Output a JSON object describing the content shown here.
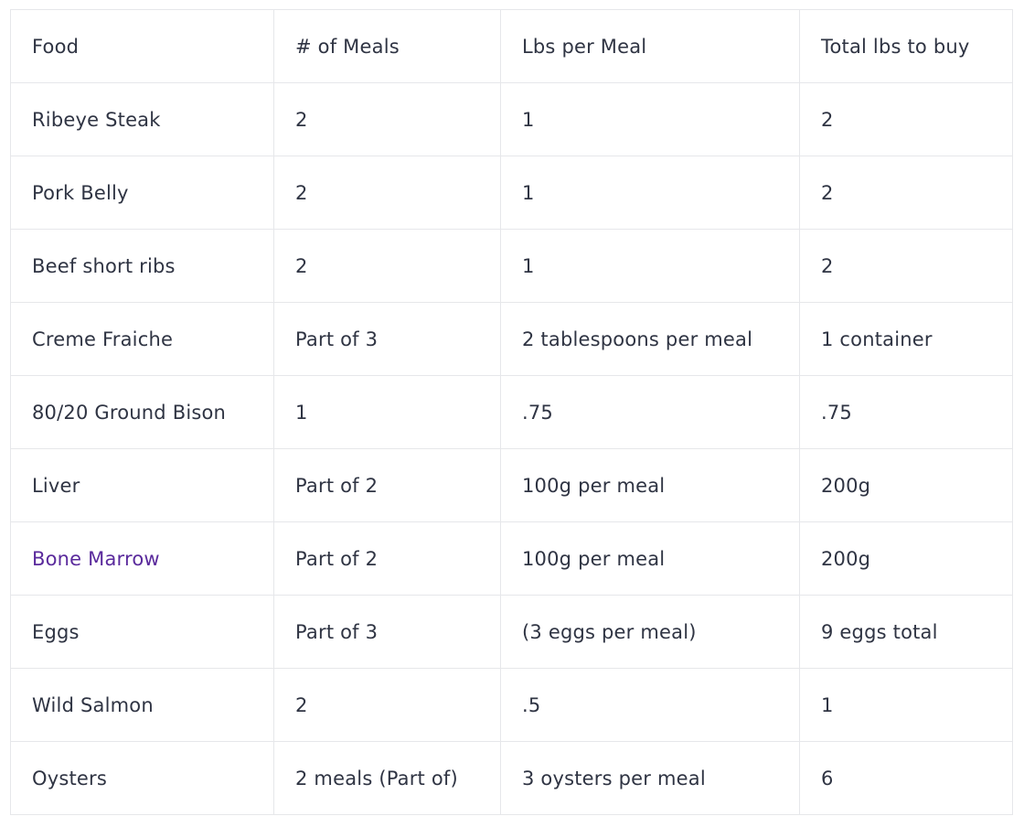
{
  "table": {
    "headers": [
      "Food",
      "# of Meals",
      "Lbs per Meal",
      "Total lbs to buy"
    ],
    "rows": [
      [
        "Ribeye Steak",
        "2",
        "1",
        "2"
      ],
      [
        "Pork Belly",
        "2",
        "1",
        "2"
      ],
      [
        "Beef short ribs",
        "2",
        "1",
        "2"
      ],
      [
        "Creme Fraiche",
        "Part of 3",
        "2 tablespoons per meal",
        "1 container"
      ],
      [
        "80/20 Ground Bison",
        "1",
        ".75",
        ".75"
      ],
      [
        "Liver",
        "Part of 2",
        "100g per meal",
        "200g"
      ],
      [
        "Bone Marrow",
        "Part of 2",
        "100g per meal",
        "200g"
      ],
      [
        "Eggs",
        "Part of 3",
        "(3 eggs per meal)",
        "9 eggs total"
      ],
      [
        "Wild Salmon",
        "2",
        ".5",
        "1"
      ],
      [
        "Oysters",
        "2 meals (Part of)",
        "3 oysters per meal",
        "6"
      ]
    ],
    "link_color": "#5a2a9c",
    "text_color": "#2f3443",
    "border_color": "#e6e7ea"
  }
}
